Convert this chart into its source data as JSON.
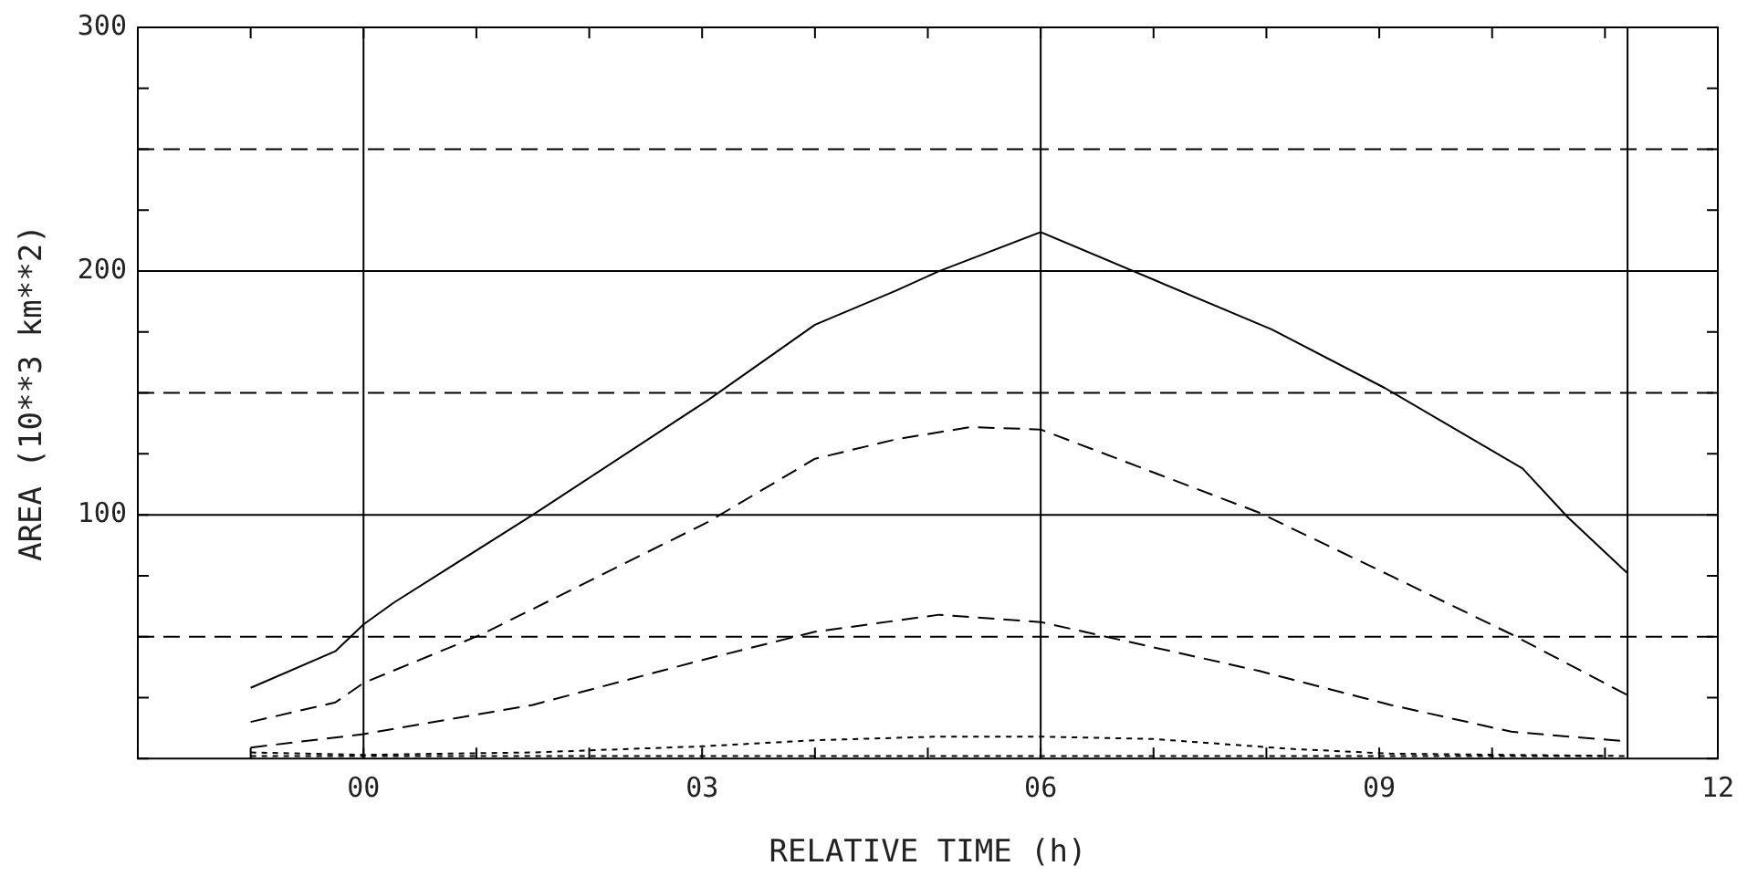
{
  "chart_data": {
    "type": "line",
    "xlabel": "RELATIVE TIME (h)",
    "ylabel": "AREA (10**3 km**2)",
    "xlim": [
      -2,
      12
    ],
    "ylim": [
      0,
      300
    ],
    "xticks": [
      {
        "value": -2,
        "label": null
      },
      {
        "value": -1,
        "label": null
      },
      {
        "value": 0,
        "label": "00"
      },
      {
        "value": 1,
        "label": null
      },
      {
        "value": 2,
        "label": null
      },
      {
        "value": 3,
        "label": "03"
      },
      {
        "value": 4,
        "label": null
      },
      {
        "value": 5,
        "label": null
      },
      {
        "value": 6,
        "label": "06"
      },
      {
        "value": 7,
        "label": null
      },
      {
        "value": 8,
        "label": null
      },
      {
        "value": 9,
        "label": "09"
      },
      {
        "value": 10,
        "label": null
      },
      {
        "value": 11,
        "label": null
      },
      {
        "value": 12,
        "label": "12"
      }
    ],
    "yticks": [
      {
        "value": 0,
        "label": null
      },
      {
        "value": 25,
        "label": null
      },
      {
        "value": 50,
        "label": null
      },
      {
        "value": 75,
        "label": null
      },
      100,
      {
        "value": 125,
        "label": null
      },
      {
        "value": 150,
        "label": null
      },
      {
        "value": 175,
        "label": null
      },
      200,
      {
        "value": 225,
        "label": null
      },
      {
        "value": 250,
        "label": null
      },
      {
        "value": 275,
        "label": null
      },
      300
    ],
    "grid": false,
    "legend": false,
    "marker": "none",
    "ref_lines": [
      {
        "axis": "y",
        "value": 100,
        "color": "#000000",
        "line_style": "solid"
      },
      {
        "axis": "y",
        "value": 200,
        "color": "#000000",
        "line_style": "solid"
      },
      {
        "axis": "y",
        "value": 50,
        "color": "#000000",
        "line_style": "dashed"
      },
      {
        "axis": "y",
        "value": 150,
        "color": "#000000",
        "line_style": "dashed"
      },
      {
        "axis": "y",
        "value": 250,
        "color": "#000000",
        "line_style": "dashed"
      },
      {
        "axis": "x",
        "value": 0,
        "color": "#000000",
        "line_style": "solid"
      },
      {
        "axis": "x",
        "value": 6,
        "color": "#000000",
        "line_style": "solid"
      },
      {
        "axis": "x",
        "value": 11.2,
        "color": "#000000",
        "line_style": "solid"
      }
    ],
    "series": [
      {
        "color": "#000000",
        "line_style": "solid",
        "x": [
          -1,
          -0.25,
          0,
          0.27,
          1.5,
          3.05,
          4,
          4.72,
          5.1,
          6,
          8.05,
          9.05,
          10.27,
          10.67,
          11.2
        ],
        "values": [
          29,
          44,
          55,
          64,
          100,
          147,
          178,
          192,
          200,
          216,
          176,
          152,
          119,
          99,
          76
        ]
      },
      {
        "color": "#000000",
        "line_style": "dashed",
        "x": [
          -1,
          -0.25,
          0,
          1.05,
          3.05,
          4,
          4.72,
          5.38,
          6,
          7.93,
          9.1,
          10.17,
          11.2
        ],
        "values": [
          15,
          23,
          31,
          51,
          97,
          123,
          131,
          136,
          135,
          101,
          75,
          51,
          26
        ]
      },
      {
        "color": "#000000",
        "line_style": "dashed",
        "x": [
          -1,
          0,
          1.5,
          3.05,
          4,
          5.1,
          6,
          7.93,
          9.1,
          10.17,
          11.2
        ],
        "values": [
          4.5,
          10,
          22,
          41,
          52,
          59,
          56,
          36,
          22,
          11,
          7
        ]
      },
      {
        "color": "#000000",
        "line_style": "dotted",
        "x": [
          -1,
          0,
          1.5,
          3,
          4,
          5.1,
          6,
          7,
          8.2,
          9.1,
          11.2
        ],
        "values": [
          2.5,
          1.5,
          2.5,
          5,
          7.5,
          9,
          9,
          8,
          4,
          2,
          1
        ]
      },
      {
        "color": "#000000",
        "line_style": "dotted",
        "x": [
          -1,
          -0.5,
          0,
          0.5,
          1,
          1.5,
          2,
          2.5,
          3,
          3.5,
          4,
          4.5,
          5,
          5.5,
          6,
          6.5,
          7,
          7.5,
          8,
          8.5,
          9,
          9.5,
          10,
          10.5,
          11
        ],
        "values": [
          1,
          1,
          1,
          1,
          1,
          1,
          1,
          1,
          1,
          1,
          1,
          1,
          1,
          1,
          1,
          1,
          1,
          1,
          1,
          1,
          1,
          1,
          1,
          1,
          1
        ]
      }
    ]
  }
}
